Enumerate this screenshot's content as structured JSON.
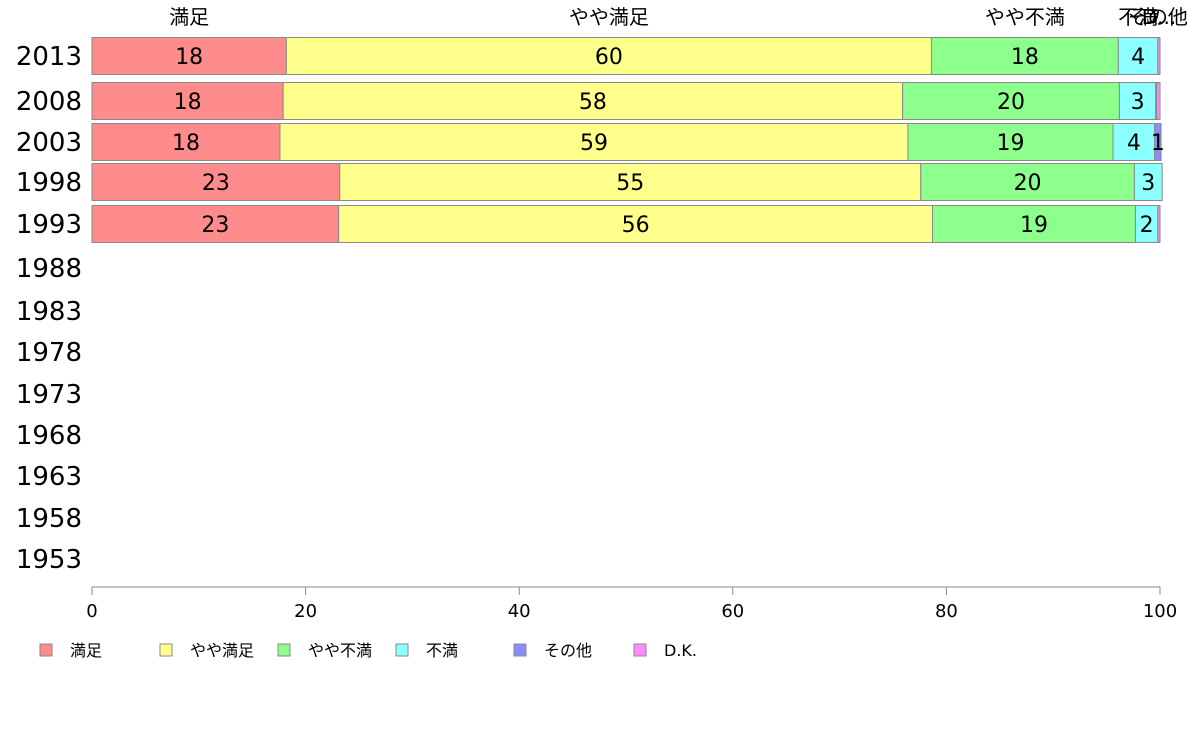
{
  "chart_data": {
    "type": "bar",
    "orientation": "horizontal",
    "stacked": true,
    "categories": [
      "2013",
      "2008",
      "2003",
      "1998",
      "1993",
      "1988",
      "1983",
      "1978",
      "1973",
      "1968",
      "1963",
      "1958",
      "1953"
    ],
    "series": [
      {
        "name": "満足",
        "color": "#ff8c8c",
        "values": [
          18.2,
          17.9,
          17.6,
          23.2,
          23.1,
          null,
          null,
          null,
          null,
          null,
          null,
          null,
          null
        ]
      },
      {
        "name": "やや満足",
        "color": "#ffff8c",
        "values": [
          60.4,
          58.0,
          58.8,
          54.4,
          55.6,
          null,
          null,
          null,
          null,
          null,
          null,
          null,
          null
        ]
      },
      {
        "name": "やや不満",
        "color": "#8cff8c",
        "values": [
          17.5,
          20.3,
          19.2,
          20.0,
          19.0,
          null,
          null,
          null,
          null,
          null,
          null,
          null,
          null
        ]
      },
      {
        "name": "不満",
        "color": "#8cffff",
        "values": [
          3.7,
          3.4,
          3.9,
          2.6,
          2.1,
          null,
          null,
          null,
          null,
          null,
          null,
          null,
          null
        ]
      },
      {
        "name": "その他",
        "color": "#8c8cff",
        "values": [
          0.0,
          0.1,
          0.6,
          0.0,
          0.0,
          null,
          null,
          null,
          null,
          null,
          null,
          null,
          null
        ]
      },
      {
        "name": "D.K.",
        "color": "#ff8cff",
        "values": [
          0.2,
          0.3,
          0.0,
          0.0,
          0.2,
          null,
          null,
          null,
          null,
          null,
          null,
          null,
          null
        ]
      }
    ],
    "data_labels": [
      [
        "18",
        "60",
        "18",
        "4",
        "",
        ""
      ],
      [
        "18",
        "58",
        "20",
        "3",
        "",
        ""
      ],
      [
        "18",
        "59",
        "19",
        "4",
        "1",
        ""
      ],
      [
        "23",
        "55",
        "20",
        "3",
        "",
        ""
      ],
      [
        "23",
        "56",
        "19",
        "2",
        "",
        ""
      ]
    ],
    "top_labels": [
      "満足",
      "やや満足",
      "やや不満",
      "不満",
      "その他",
      "D..."
    ],
    "xlim": [
      0,
      100
    ],
    "xticks": [
      "0",
      "20",
      "40",
      "60",
      "80",
      "100"
    ],
    "legend": {
      "position": "bottom-left",
      "entries": [
        "満足",
        "やや満足",
        "やや不満",
        "不満",
        "その他",
        "D.K."
      ]
    },
    "grid": false,
    "title": "",
    "xlabel": "",
    "ylabel": ""
  }
}
